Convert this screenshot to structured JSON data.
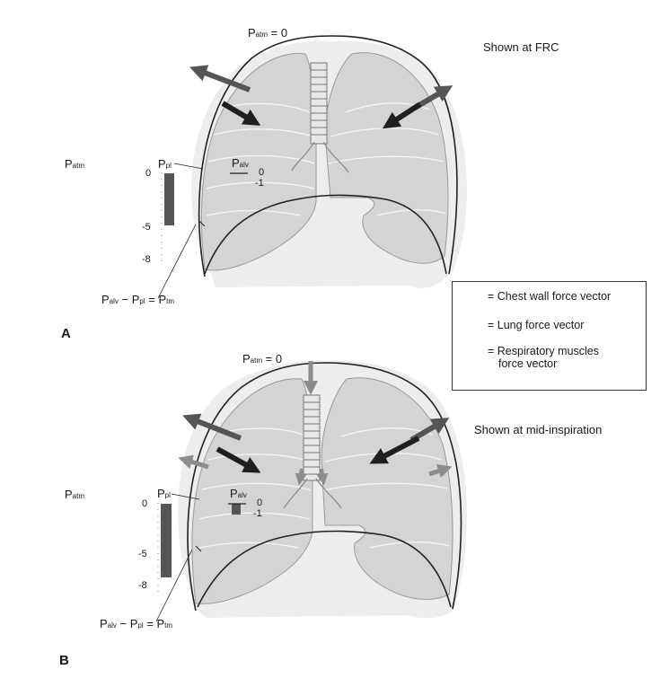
{
  "panels": [
    {
      "id": "A",
      "panel_label": "A",
      "top_label": "P",
      "top_label_sub": "atm",
      "top_label_value": " = 0",
      "caption": "Shown at FRC",
      "side_label": "P",
      "side_label_sub": "atm",
      "ppl_label": "P",
      "ppl_sub": "pl",
      "palv_label": "P",
      "palv_sub": "alv",
      "scale_ticks": [
        "0",
        "-5",
        "-8"
      ],
      "palv_ticks": [
        "0",
        "-1"
      ],
      "equation": {
        "a": "P",
        "a_sub": "alv",
        "minus": " − ",
        "b": "P",
        "b_sub": "pl",
        "eq": " = ",
        "c": "P",
        "c_sub": "tm"
      }
    },
    {
      "id": "B",
      "panel_label": "B",
      "top_label": "P",
      "top_label_sub": "atm",
      "top_label_value": " = 0",
      "caption": "Shown at mid-inspiration",
      "side_label": "P",
      "side_label_sub": "atm",
      "ppl_label": "P",
      "ppl_sub": "pl",
      "palv_label": "P",
      "palv_sub": "alv",
      "scale_ticks": [
        "0",
        "-5",
        "-8"
      ],
      "palv_ticks": [
        "0",
        "-1"
      ],
      "equation": {
        "a": "P",
        "a_sub": "alv",
        "minus": " − ",
        "b": "P",
        "b_sub": "pl",
        "eq": " = ",
        "c": "P",
        "c_sub": "tm"
      }
    }
  ],
  "legend": {
    "items": [
      {
        "label": "= Chest wall force vector",
        "color": "#555555"
      },
      {
        "label": "= Lung force vector",
        "color": "#1f1f1f"
      },
      {
        "label": "= Respiratory muscles",
        "label2": "force vector",
        "color": "#8c8c8c"
      }
    ]
  },
  "colors": {
    "lung_fill": "#d4d4d4",
    "lung_edge": "#9a9a9a",
    "chest_wall": "#222222",
    "bar": "#555555"
  }
}
